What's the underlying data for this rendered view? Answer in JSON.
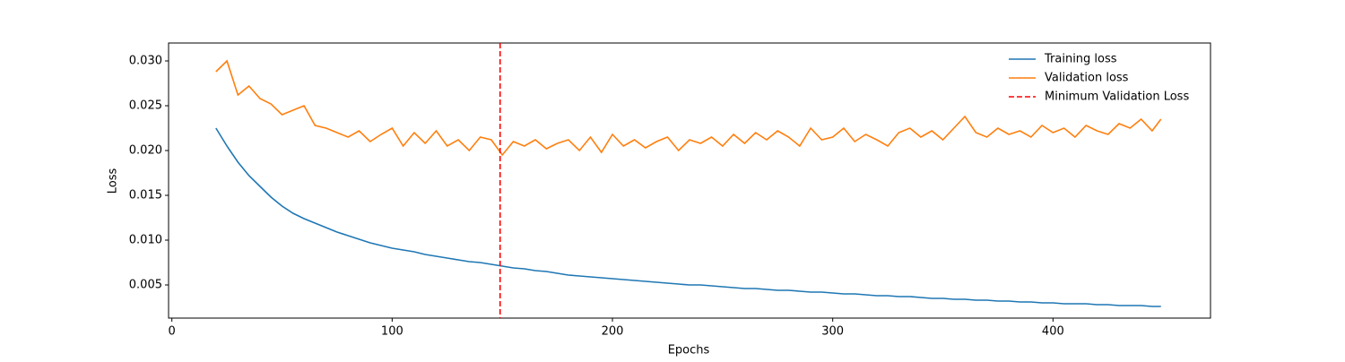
{
  "chart_data": {
    "type": "line",
    "xlabel": "Epochs",
    "ylabel": "Loss",
    "x": [
      20,
      25,
      30,
      35,
      40,
      45,
      50,
      55,
      60,
      65,
      70,
      75,
      80,
      85,
      90,
      95,
      100,
      105,
      110,
      115,
      120,
      125,
      130,
      135,
      140,
      145,
      150,
      155,
      160,
      165,
      170,
      175,
      180,
      185,
      190,
      195,
      200,
      205,
      210,
      215,
      220,
      225,
      230,
      235,
      240,
      245,
      250,
      255,
      260,
      265,
      270,
      275,
      280,
      285,
      290,
      295,
      300,
      305,
      310,
      315,
      320,
      325,
      330,
      335,
      340,
      345,
      350,
      355,
      360,
      365,
      370,
      375,
      380,
      385,
      390,
      395,
      400,
      405,
      410,
      415,
      420,
      425,
      430,
      435,
      440,
      445,
      449
    ],
    "series": [
      {
        "name": "Training loss",
        "color": "#1f77b4",
        "values": [
          0.0225,
          0.0205,
          0.0187,
          0.0172,
          0.016,
          0.0148,
          0.0138,
          0.013,
          0.0124,
          0.0119,
          0.0114,
          0.0109,
          0.0105,
          0.0101,
          0.0097,
          0.0094,
          0.0091,
          0.0089,
          0.0087,
          0.0084,
          0.0082,
          0.008,
          0.0078,
          0.0076,
          0.0075,
          0.0073,
          0.0071,
          0.0069,
          0.0068,
          0.0066,
          0.0065,
          0.0063,
          0.0061,
          0.006,
          0.0059,
          0.0058,
          0.0057,
          0.0056,
          0.0055,
          0.0054,
          0.0053,
          0.0052,
          0.0051,
          0.005,
          0.005,
          0.0049,
          0.0048,
          0.0047,
          0.0046,
          0.0046,
          0.0045,
          0.0044,
          0.0044,
          0.0043,
          0.0042,
          0.0042,
          0.0041,
          0.004,
          0.004,
          0.0039,
          0.0038,
          0.0038,
          0.0037,
          0.0037,
          0.0036,
          0.0035,
          0.0035,
          0.0034,
          0.0034,
          0.0033,
          0.0033,
          0.0032,
          0.0032,
          0.0031,
          0.0031,
          0.003,
          0.003,
          0.0029,
          0.0029,
          0.0029,
          0.0028,
          0.0028,
          0.0027,
          0.0027,
          0.0027,
          0.0026,
          0.0026
        ]
      },
      {
        "name": "Validation loss",
        "color": "#ff7f0e",
        "values": [
          0.0288,
          0.03,
          0.0262,
          0.0272,
          0.0258,
          0.0252,
          0.024,
          0.0245,
          0.025,
          0.0228,
          0.0225,
          0.022,
          0.0215,
          0.0222,
          0.021,
          0.0218,
          0.0225,
          0.0205,
          0.022,
          0.0208,
          0.0222,
          0.0205,
          0.0212,
          0.02,
          0.0215,
          0.0212,
          0.0195,
          0.021,
          0.0205,
          0.0212,
          0.0202,
          0.0208,
          0.0212,
          0.02,
          0.0215,
          0.0198,
          0.0218,
          0.0205,
          0.0212,
          0.0203,
          0.021,
          0.0215,
          0.02,
          0.0212,
          0.0208,
          0.0215,
          0.0205,
          0.0218,
          0.0208,
          0.022,
          0.0212,
          0.0222,
          0.0215,
          0.0205,
          0.0225,
          0.0212,
          0.0215,
          0.0225,
          0.021,
          0.0218,
          0.0212,
          0.0205,
          0.022,
          0.0225,
          0.0215,
          0.0222,
          0.0212,
          0.0225,
          0.0238,
          0.022,
          0.0215,
          0.0225,
          0.0218,
          0.0222,
          0.0215,
          0.0228,
          0.022,
          0.0225,
          0.0215,
          0.0228,
          0.0222,
          0.0218,
          0.023,
          0.0225,
          0.0235,
          0.0222,
          0.0235
        ]
      }
    ],
    "vline": {
      "name": "Minimum Validation Loss",
      "x": 149,
      "color": "#ff0000"
    },
    "xlim": [
      -1.5,
      471.5
    ],
    "xticks": [
      0,
      100,
      200,
      300,
      400
    ],
    "ylim": [
      0.0013,
      0.032
    ],
    "yticks": [
      0.005,
      {
        "value": 0.01,
        "label": "0.010"
      },
      0.015,
      {
        "value": 0.02,
        "label": "0.020"
      },
      0.025,
      {
        "value": 0.03,
        "label": "0.030"
      }
    ],
    "legend": "upper right",
    "grid": false
  }
}
